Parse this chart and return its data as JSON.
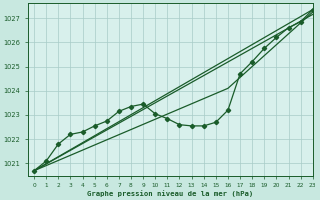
{
  "title": "Graphe pression niveau de la mer (hPa)",
  "background_color": "#c8e8e0",
  "plot_bg_color": "#d8f0ec",
  "grid_color": "#a8ccc8",
  "line_color": "#1a5c2a",
  "xlim": [
    -0.5,
    23
  ],
  "ylim": [
    1020.5,
    1027.6
  ],
  "yticks": [
    1021,
    1022,
    1023,
    1024,
    1025,
    1026,
    1027
  ],
  "xticks": [
    0,
    1,
    2,
    3,
    4,
    5,
    6,
    7,
    8,
    9,
    10,
    11,
    12,
    13,
    14,
    15,
    16,
    17,
    18,
    19,
    20,
    21,
    22,
    23
  ],
  "line_straight1": {
    "x": [
      0,
      23
    ],
    "y": [
      1020.7,
      1027.35
    ]
  },
  "line_straight2": {
    "x": [
      0,
      23
    ],
    "y": [
      1020.7,
      1027.15
    ]
  },
  "line_straight3": {
    "x": [
      0,
      16,
      23
    ],
    "y": [
      1020.7,
      1024.1,
      1027.25
    ]
  },
  "line_curve": {
    "x": [
      0,
      1,
      2,
      3,
      4,
      5,
      6,
      7,
      8,
      9,
      10,
      11,
      12,
      13,
      14,
      15,
      16,
      17,
      18,
      19,
      20,
      21,
      22,
      23
    ],
    "y": [
      1020.7,
      1021.1,
      1021.8,
      1022.2,
      1022.3,
      1022.55,
      1022.75,
      1023.15,
      1023.35,
      1023.45,
      1023.05,
      1022.85,
      1022.6,
      1022.55,
      1022.55,
      1022.7,
      1023.2,
      1024.7,
      1025.2,
      1025.75,
      1026.2,
      1026.6,
      1026.85,
      1027.35
    ]
  }
}
